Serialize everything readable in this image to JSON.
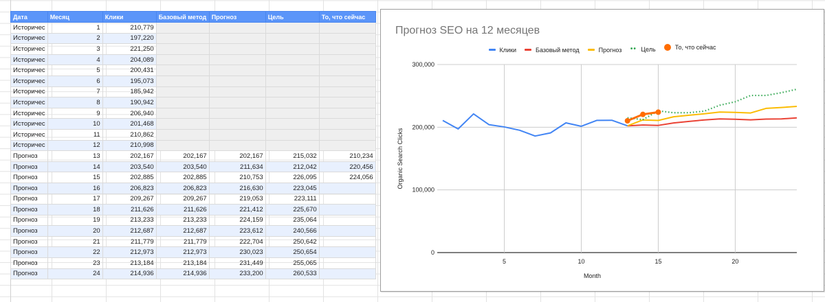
{
  "table": {
    "headers": [
      "Дата",
      "Месяц",
      "Клики",
      "Базовый метод",
      "Прогноз",
      "Цель",
      "То, что сейчас"
    ],
    "rows": [
      [
        "Историчес",
        "1",
        "210,779",
        "",
        "",
        "",
        ""
      ],
      [
        "Историчес",
        "2",
        "197,220",
        "",
        "",
        "",
        ""
      ],
      [
        "Историчес",
        "3",
        "221,250",
        "",
        "",
        "",
        ""
      ],
      [
        "Историчес",
        "4",
        "204,089",
        "",
        "",
        "",
        ""
      ],
      [
        "Историчес",
        "5",
        "200,431",
        "",
        "",
        "",
        ""
      ],
      [
        "Историчес",
        "6",
        "195,073",
        "",
        "",
        "",
        ""
      ],
      [
        "Историчес",
        "7",
        "185,942",
        "",
        "",
        "",
        ""
      ],
      [
        "Историчес",
        "8",
        "190,942",
        "",
        "",
        "",
        ""
      ],
      [
        "Историчес",
        "9",
        "206,940",
        "",
        "",
        "",
        ""
      ],
      [
        "Историчес",
        "10",
        "201,468",
        "",
        "",
        "",
        ""
      ],
      [
        "Историчес",
        "11",
        "210,862",
        "",
        "",
        "",
        ""
      ],
      [
        "Историчес",
        "12",
        "210,998",
        "",
        "",
        "",
        ""
      ],
      [
        "Прогноз",
        "13",
        "202,167",
        "202,167",
        "202,167",
        "215,032",
        "210,234"
      ],
      [
        "Прогноз",
        "14",
        "203,540",
        "203,540",
        "211,634",
        "212,042",
        "220,456"
      ],
      [
        "Прогноз",
        "15",
        "202,885",
        "202,885",
        "210,753",
        "226,095",
        "224,056"
      ],
      [
        "Прогноз",
        "16",
        "206,823",
        "206,823",
        "216,630",
        "223,045",
        ""
      ],
      [
        "Прогноз",
        "17",
        "209,267",
        "209,267",
        "219,053",
        "223,111",
        ""
      ],
      [
        "Прогноз",
        "18",
        "211,626",
        "211,626",
        "221,412",
        "225,670",
        ""
      ],
      [
        "Прогноз",
        "19",
        "213,233",
        "213,233",
        "224,159",
        "235,064",
        ""
      ],
      [
        "Прогноз",
        "20",
        "212,687",
        "212,687",
        "223,612",
        "240,566",
        ""
      ],
      [
        "Прогноз",
        "21",
        "211,779",
        "211,779",
        "222,704",
        "250,642",
        ""
      ],
      [
        "Прогноз",
        "22",
        "212,973",
        "212,973",
        "230,023",
        "250,654",
        ""
      ],
      [
        "Прогноз",
        "23",
        "213,184",
        "213,184",
        "231,449",
        "255,065",
        ""
      ],
      [
        "Прогноз",
        "24",
        "214,936",
        "214,936",
        "233,200",
        "260,533",
        ""
      ]
    ]
  },
  "chart": {
    "title": "Прогноз SEO на 12 месяцев",
    "xlabel": "Month",
    "ylabel": "Organic Search Clicks",
    "legend": [
      {
        "label": "Клики",
        "color": "#4285f4",
        "style": "line"
      },
      {
        "label": "Базовый метод",
        "color": "#ea4335",
        "style": "line"
      },
      {
        "label": "Прогноз",
        "color": "#fbbc04",
        "style": "line"
      },
      {
        "label": "Цель",
        "color": "#34a853",
        "style": "dots"
      },
      {
        "label": "То, что сейчас",
        "color": "#ff6d01",
        "style": "dot"
      }
    ],
    "yticks": [
      "0",
      "100,000",
      "200,000",
      "300,000"
    ],
    "xticks": [
      "5",
      "10",
      "15",
      "20"
    ]
  },
  "chart_data": {
    "type": "line",
    "title": "Прогноз SEO на 12 месяцев",
    "xlabel": "Month",
    "ylabel": "Organic Search Clicks",
    "ylim": [
      0,
      300000
    ],
    "xlim": [
      1,
      24
    ],
    "grid": true,
    "legend_position": "top",
    "x": [
      1,
      2,
      3,
      4,
      5,
      6,
      7,
      8,
      9,
      10,
      11,
      12,
      13,
      14,
      15,
      16,
      17,
      18,
      19,
      20,
      21,
      22,
      23,
      24
    ],
    "series": [
      {
        "name": "Клики",
        "color": "#4285f4",
        "values": [
          210779,
          197220,
          221250,
          204089,
          200431,
          195073,
          185942,
          190942,
          206940,
          201468,
          210862,
          210998,
          202167,
          null,
          null,
          null,
          null,
          null,
          null,
          null,
          null,
          null,
          null,
          null
        ]
      },
      {
        "name": "Базовый метод",
        "color": "#ea4335",
        "values": [
          null,
          null,
          null,
          null,
          null,
          null,
          null,
          null,
          null,
          null,
          null,
          null,
          202167,
          203540,
          202885,
          206823,
          209267,
          211626,
          213233,
          212687,
          211779,
          212973,
          213184,
          214936
        ]
      },
      {
        "name": "Прогноз",
        "color": "#fbbc04",
        "values": [
          null,
          null,
          null,
          null,
          null,
          null,
          null,
          null,
          null,
          null,
          null,
          null,
          202167,
          211634,
          210753,
          216630,
          219053,
          221412,
          224159,
          223612,
          222704,
          230023,
          231449,
          233200
        ]
      },
      {
        "name": "Цель",
        "color": "#34a853",
        "values": [
          null,
          null,
          null,
          null,
          null,
          null,
          null,
          null,
          null,
          null,
          null,
          null,
          215032,
          212042,
          226095,
          223045,
          223111,
          225670,
          235064,
          240566,
          250642,
          250654,
          255065,
          260533
        ]
      },
      {
        "name": "То, что сейчас",
        "color": "#ff6d01",
        "values": [
          null,
          null,
          null,
          null,
          null,
          null,
          null,
          null,
          null,
          null,
          null,
          null,
          210234,
          220456,
          224056,
          null,
          null,
          null,
          null,
          null,
          null,
          null,
          null,
          null
        ]
      }
    ]
  }
}
